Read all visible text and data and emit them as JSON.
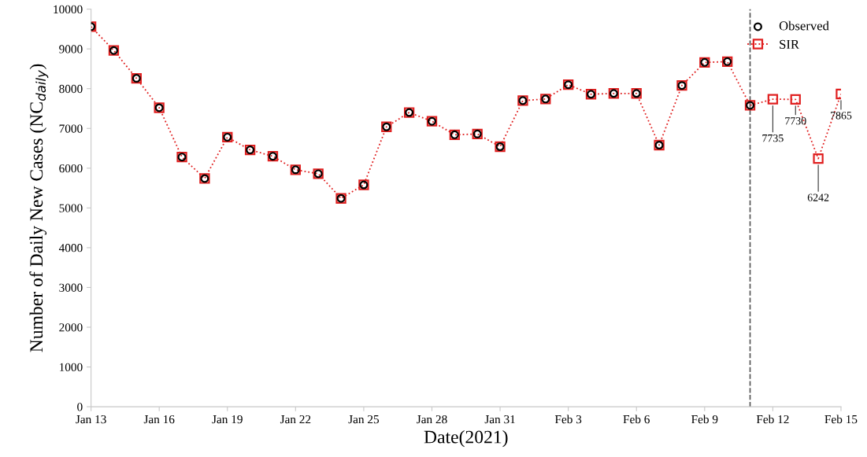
{
  "chart_data": {
    "type": "line",
    "xlabel": "Date(2021)",
    "ylabel": "Number of Daily New Cases (NC$_{daily}$)",
    "x": [
      "2021-01-13",
      "2021-01-14",
      "2021-01-15",
      "2021-01-16",
      "2021-01-17",
      "2021-01-18",
      "2021-01-19",
      "2021-01-20",
      "2021-01-21",
      "2021-01-22",
      "2021-01-23",
      "2021-01-24",
      "2021-01-25",
      "2021-01-26",
      "2021-01-27",
      "2021-01-28",
      "2021-01-29",
      "2021-01-30",
      "2021-01-31",
      "2021-02-01",
      "2021-02-02",
      "2021-02-03",
      "2021-02-04",
      "2021-02-05",
      "2021-02-06",
      "2021-02-07",
      "2021-02-08",
      "2021-02-09",
      "2021-02-10",
      "2021-02-11",
      "2021-02-12",
      "2021-02-13",
      "2021-02-14",
      "2021-02-15"
    ],
    "series": [
      {
        "name": "Observed",
        "type": "scatter",
        "color": "#000000",
        "marker": "circle",
        "values": [
          9560,
          8960,
          8260,
          7520,
          6280,
          5740,
          6780,
          6460,
          6300,
          5960,
          5860,
          5240,
          5580,
          7040,
          7400,
          7180,
          6840,
          6860,
          6540,
          7700,
          7740,
          8100,
          7860,
          7880,
          7880,
          6580,
          8080,
          8660,
          8680,
          7580,
          null,
          null,
          null,
          null
        ]
      },
      {
        "name": "SIR",
        "color": "#e02020",
        "marker": "square",
        "line_style": "dotted",
        "values": [
          9560,
          8960,
          8260,
          7520,
          6280,
          5740,
          6780,
          6460,
          6300,
          5960,
          5860,
          5240,
          5580,
          7040,
          7400,
          7180,
          6840,
          6860,
          6540,
          7700,
          7740,
          8100,
          7860,
          7880,
          7880,
          6580,
          8080,
          8660,
          8680,
          7580,
          7735,
          7730,
          6242,
          7865
        ]
      }
    ],
    "xlim": [
      "2021-01-13",
      "2021-02-15"
    ],
    "xticks": [
      {
        "value": "2021-01-13",
        "label": "Jan 13"
      },
      {
        "value": "2021-01-16",
        "label": "Jan 16"
      },
      {
        "value": "2021-01-19",
        "label": "Jan 19"
      },
      {
        "value": "2021-01-22",
        "label": "Jan 22"
      },
      {
        "value": "2021-01-25",
        "label": "Jan 25"
      },
      {
        "value": "2021-01-28",
        "label": "Jan 28"
      },
      {
        "value": "2021-01-31",
        "label": "Jan 31"
      },
      {
        "value": "2021-02-03",
        "label": "Feb 3"
      },
      {
        "value": "2021-02-06",
        "label": "Feb 6"
      },
      {
        "value": "2021-02-09",
        "label": "Feb 9"
      },
      {
        "value": "2021-02-12",
        "label": "Feb 12"
      },
      {
        "value": "2021-02-15",
        "label": "Feb 15"
      }
    ],
    "ylim": [
      0,
      10000
    ],
    "yticks": [
      0,
      1000,
      2000,
      3000,
      4000,
      5000,
      6000,
      7000,
      8000,
      9000,
      10000
    ],
    "ref_lines": [
      {
        "axis": "x",
        "value": "2021-02-11",
        "color": "#555555",
        "line_style": "dashed"
      }
    ],
    "annotations": [
      {
        "text": "7735",
        "x": "2021-02-12",
        "y": 7735
      },
      {
        "text": "7730",
        "x": "2021-02-13",
        "y": 7730
      },
      {
        "text": "6242",
        "x": "2021-02-14",
        "y": 6242
      },
      {
        "text": "7865",
        "x": "2021-02-15",
        "y": 7865
      }
    ],
    "grid": false,
    "legend": "top right"
  }
}
